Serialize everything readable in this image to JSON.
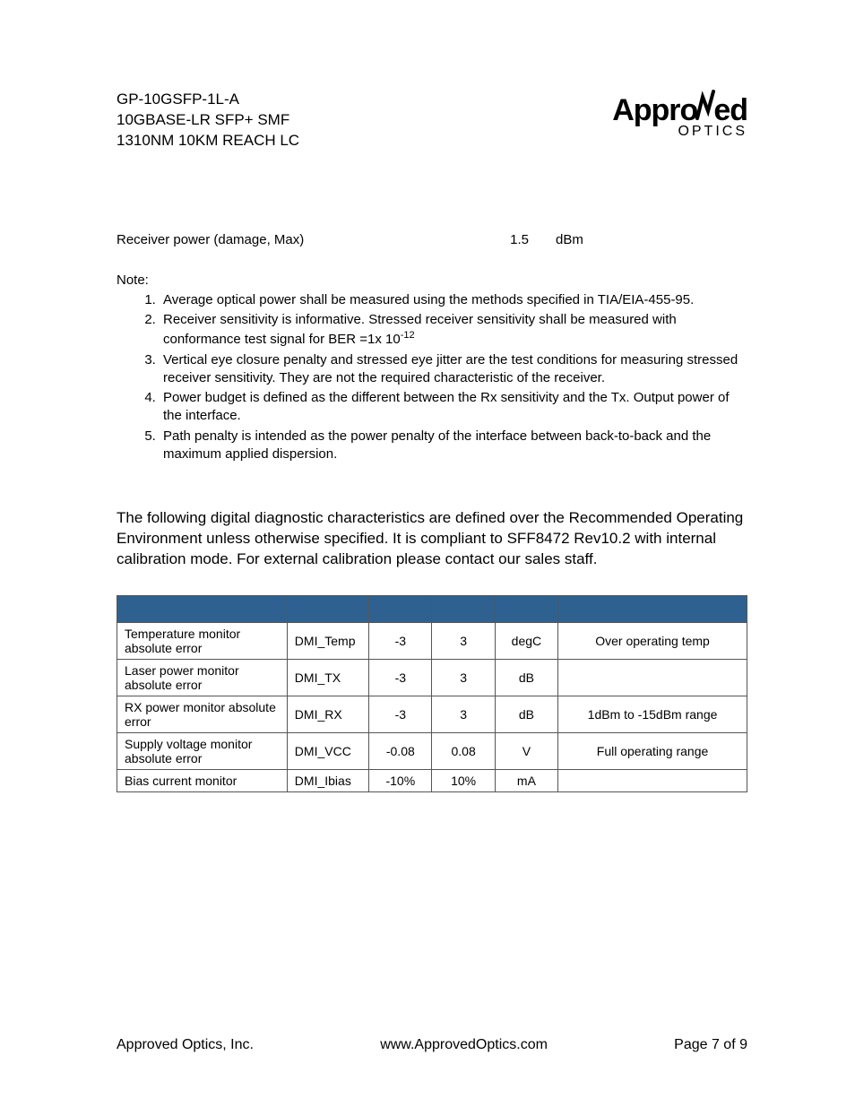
{
  "header": {
    "line1": "GP-10GSFP-1L-A",
    "line2": "10GBASE-LR SFP+ SMF",
    "line3": "1310NM 10KM REACH LC"
  },
  "logo": {
    "main_pre": "Appro",
    "main_post": "ed",
    "sub": "OPTICS"
  },
  "spec": {
    "label": "Receiver power (damage, Max)",
    "value": "1.5",
    "unit": "dBm"
  },
  "note_label": "Note:",
  "notes": [
    "Average optical power shall be measured using the methods specified in TIA/EIA-455-95.",
    "Receiver sensitivity is informative. Stressed receiver sensitivity shall be measured with conformance test signal for BER =1x 10",
    "Vertical eye closure penalty and stressed eye jitter are the test conditions for measuring stressed receiver sensitivity. They are not the required characteristic of the receiver.",
    "Power budget is defined as the different between the Rx sensitivity and the Tx. Output power of the interface.",
    "Path penalty is intended as the power penalty of the interface between back-to-back and the maximum applied dispersion."
  ],
  "note2_sup": "-12",
  "body_text": "The following digital diagnostic characteristics are defined over the Recommended Operating Environment unless otherwise specified. It is compliant to SFF8472 Rev10.2 with internal calibration mode. For external calibration please contact our sales staff.",
  "table": {
    "header_bg": "#2f6190",
    "rows": [
      {
        "param": "Temperature monitor absolute error",
        "symbol": "DMI_Temp",
        "min": "-3",
        "max": "3",
        "unit": "degC",
        "notes": "Over operating temp"
      },
      {
        "param": "Laser power monitor absolute error",
        "symbol": "DMI_TX",
        "min": "-3",
        "max": "3",
        "unit": "dB",
        "notes": ""
      },
      {
        "param": "RX power monitor absolute error",
        "symbol": "DMI_RX",
        "min": "-3",
        "max": "3",
        "unit": "dB",
        "notes": "1dBm to -15dBm range"
      },
      {
        "param": "Supply voltage monitor absolute error",
        "symbol": "DMI_VCC",
        "min": "-0.08",
        "max": "0.08",
        "unit": "V",
        "notes": "Full operating range"
      },
      {
        "param": "Bias current monitor",
        "symbol": "DMI_Ibias",
        "min": "-10%",
        "max": "10%",
        "unit": "mA",
        "notes": ""
      }
    ]
  },
  "footer": {
    "company": "Approved Optics, Inc.",
    "url": "www.ApprovedOptics.com",
    "page": "Page 7 of 9"
  }
}
